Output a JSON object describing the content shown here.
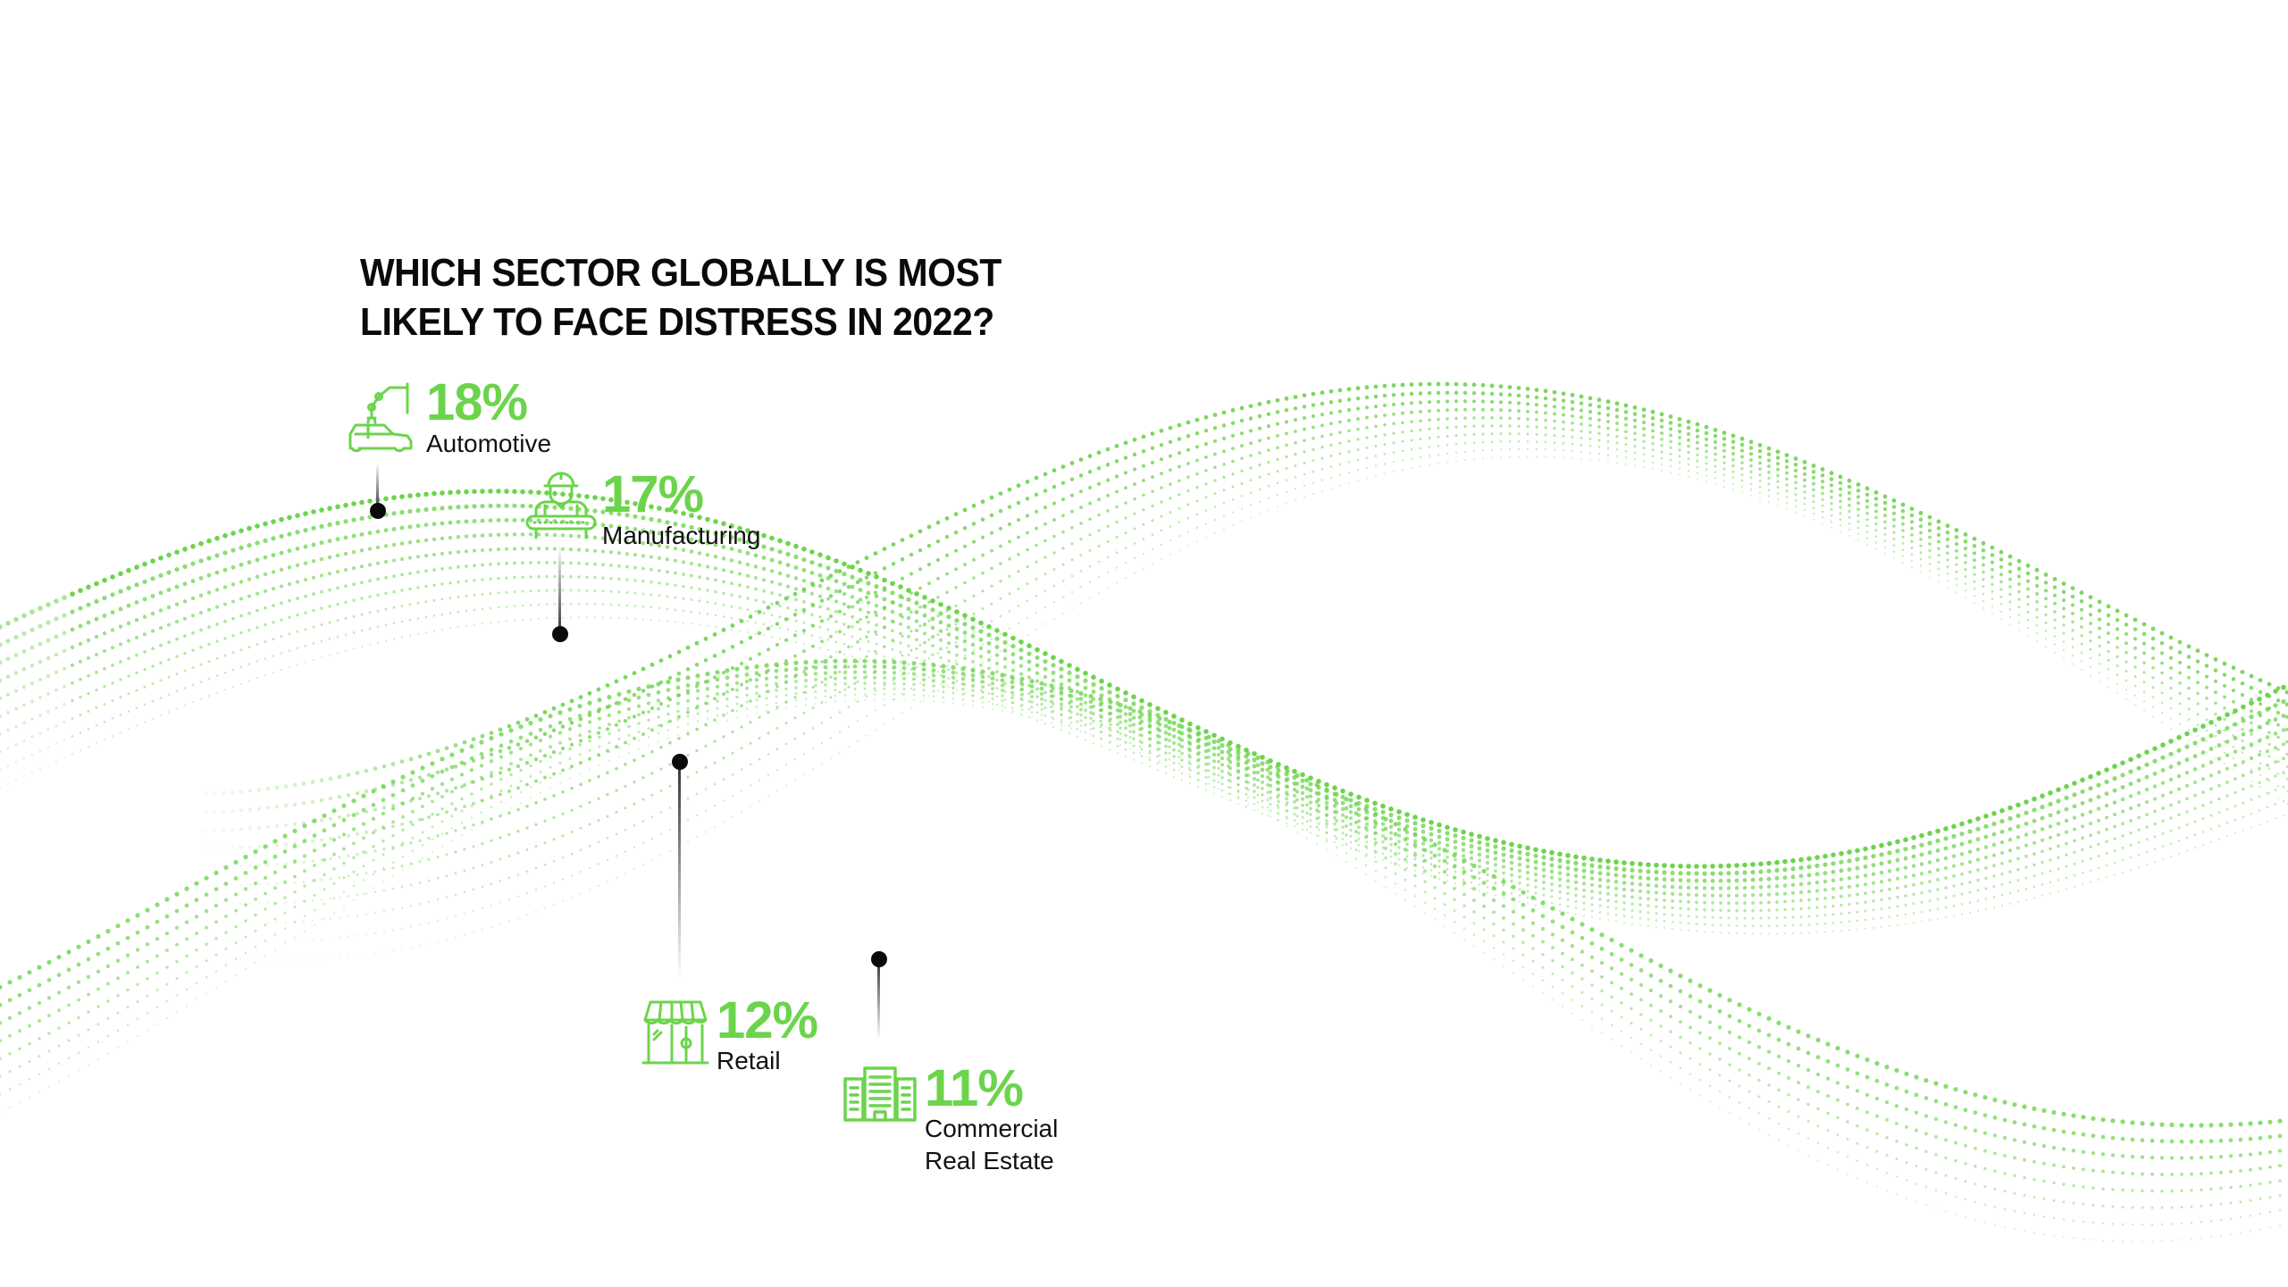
{
  "title": {
    "line1": "WHICH SECTOR GLOBALLY IS MOST",
    "line2": "LIKELY TO FACE DISTRESS IN 2022?"
  },
  "colors": {
    "accent": "#6CD44C",
    "text": "#111111",
    "marker": "#0a0a0a",
    "background": "#ffffff"
  },
  "sectors": [
    {
      "value": "18%",
      "label": "Automotive",
      "icon": "car-robot-arm-icon"
    },
    {
      "value": "17%",
      "label": "Manufacturing",
      "icon": "worker-conveyor-icon"
    },
    {
      "value": "12%",
      "label": "Retail",
      "icon": "storefront-icon"
    },
    {
      "value": "11%",
      "label": "Commercial",
      "label2": "Real Estate",
      "icon": "office-buildings-icon"
    }
  ],
  "chart_data": {
    "type": "bar",
    "title": "Which sector globally is most likely to face distress in 2022?",
    "categories": [
      "Automotive",
      "Manufacturing",
      "Retail",
      "Commercial Real Estate"
    ],
    "values": [
      18,
      17,
      12,
      11
    ],
    "unit": "%",
    "xlabel": "",
    "ylabel": "",
    "legend": "none",
    "grid": false,
    "annotations": [
      "Values annotated along a decorative dotted green wave; each sector marked by a black dot with leader line and icon"
    ]
  }
}
